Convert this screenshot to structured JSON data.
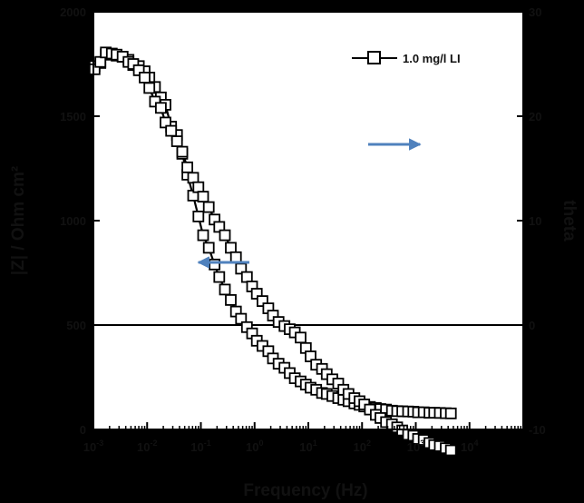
{
  "chart_data": {
    "type": "scatter",
    "title": "",
    "xlabel": "Frequency (Hz)",
    "ylabel_left": "|Z| / Ohm cm²",
    "ylabel_right": "theta",
    "xscale": "log",
    "xlim": [
      0.001,
      100000
    ],
    "ylim_left": [
      0,
      2000
    ],
    "ylim_right": [
      -10,
      30
    ],
    "x_ticks": [
      {
        "value": 0.001,
        "base": "10",
        "exp": "-3"
      },
      {
        "value": 0.01,
        "base": "10",
        "exp": "-2"
      },
      {
        "value": 0.1,
        "base": "10",
        "exp": "-1"
      },
      {
        "value": 1,
        "base": "10",
        "exp": "0"
      },
      {
        "value": 10,
        "base": "10",
        "exp": "1"
      },
      {
        "value": 100,
        "base": "10",
        "exp": "2"
      },
      {
        "value": 1000,
        "base": "10",
        "exp": "3"
      },
      {
        "value": 10000,
        "base": "10",
        "exp": "4"
      }
    ],
    "y_left_ticks": [
      {
        "value": 0,
        "label": "0"
      },
      {
        "value": 500,
        "label": "500"
      },
      {
        "value": 1000,
        "label": "1000"
      },
      {
        "value": 1500,
        "label": "1500"
      },
      {
        "value": 2000,
        "label": "2000"
      }
    ],
    "y_right_ticks": [
      {
        "value": -10,
        "label": "-10"
      },
      {
        "value": 0,
        "label": "0"
      },
      {
        "value": 10,
        "label": "10"
      },
      {
        "value": 20,
        "label": "20"
      },
      {
        "value": 30,
        "label": "30"
      }
    ],
    "zero_line_right": 0,
    "grid": false,
    "legend": {
      "position": "top-right",
      "entries": [
        "1.0 mg/l LI"
      ]
    },
    "series": [
      {
        "name": "1.0 mg/l LI",
        "role": "modulus",
        "axis": "left",
        "x": [
          0.00105,
          0.00135,
          0.0017,
          0.0022,
          0.0027,
          0.0035,
          0.0045,
          0.0055,
          0.007,
          0.009,
          0.011,
          0.014,
          0.018,
          0.022,
          0.028,
          0.036,
          0.045,
          0.056,
          0.072,
          0.09,
          0.11,
          0.14,
          0.18,
          0.22,
          0.28,
          0.36,
          0.45,
          0.56,
          0.72,
          0.9,
          1.1,
          1.4,
          1.8,
          2.2,
          2.8,
          3.6,
          4.5,
          5.6,
          7.2,
          9,
          11,
          14,
          18,
          22,
          28,
          36,
          45,
          56,
          72,
          90,
          110,
          140,
          180,
          220,
          280,
          360,
          450,
          560,
          720,
          900,
          1100,
          1400,
          1800,
          2200,
          2800,
          3600,
          4500
        ],
        "y": [
          1740,
          1755,
          1795,
          1795,
          1790,
          1785,
          1770,
          1745,
          1740,
          1715,
          1685,
          1640,
          1590,
          1555,
          1450,
          1410,
          1320,
          1220,
          1120,
          1020,
          930,
          870,
          790,
          730,
          670,
          620,
          565,
          530,
          490,
          460,
          425,
          400,
          375,
          340,
          315,
          295,
          270,
          245,
          230,
          215,
          200,
          190,
          175,
          170,
          160,
          150,
          142,
          135,
          125,
          118,
          110,
          108,
          103,
          98,
          95,
          90,
          88,
          87,
          86,
          85,
          82,
          82,
          80,
          80,
          79,
          78,
          77
        ]
      },
      {
        "name": "1.0 mg/l LI",
        "role": "phase",
        "axis": "right",
        "x": [
          0.00105,
          0.00135,
          0.0017,
          0.0022,
          0.0027,
          0.0035,
          0.0045,
          0.0055,
          0.007,
          0.009,
          0.011,
          0.014,
          0.018,
          0.022,
          0.028,
          0.036,
          0.045,
          0.056,
          0.072,
          0.09,
          0.11,
          0.14,
          0.18,
          0.22,
          0.28,
          0.36,
          0.45,
          0.56,
          0.72,
          0.9,
          1.1,
          1.4,
          1.8,
          2.2,
          2.8,
          3.6,
          4.5,
          5.6,
          7.2,
          9,
          11,
          14,
          18,
          22,
          28,
          36,
          45,
          56,
          72,
          90,
          110,
          140,
          180,
          220,
          280,
          360,
          450,
          560,
          720,
          900,
          1100,
          1400,
          1800,
          2200,
          2800,
          3600,
          4500
        ],
        "y": [
          24.5,
          25.2,
          26.1,
          26.0,
          25.9,
          25.7,
          25.2,
          25.0,
          24.4,
          23.7,
          22.7,
          21.4,
          20.8,
          19.4,
          18.6,
          17.6,
          16.6,
          15.1,
          14.1,
          13.2,
          12.3,
          11.3,
          10.1,
          9.4,
          8.6,
          7.4,
          6.5,
          5.4,
          4.6,
          3.7,
          3.0,
          2.3,
          1.6,
          0.9,
          0.3,
          -0.1,
          -0.4,
          -0.7,
          -1.2,
          -2.2,
          -3.0,
          -3.8,
          -4.2,
          -4.7,
          -5.2,
          -5.6,
          -6.2,
          -6.6,
          -7.0,
          -7.3,
          -7.6,
          -8.1,
          -8.6,
          -8.9,
          -9.3,
          -9.5,
          -9.8,
          -10.1,
          -10.5,
          -10.6,
          -10.9,
          -11.0,
          -11.3,
          -11.5,
          -11.6,
          -11.8,
          -12.0
        ]
      }
    ],
    "annotations": [
      {
        "type": "arrow",
        "direction": "left",
        "meaning": "modulus series uses left axis",
        "color": "#4f81bd"
      },
      {
        "type": "arrow",
        "direction": "right",
        "meaning": "phase series uses right axis",
        "color": "#4f81bd"
      }
    ]
  }
}
